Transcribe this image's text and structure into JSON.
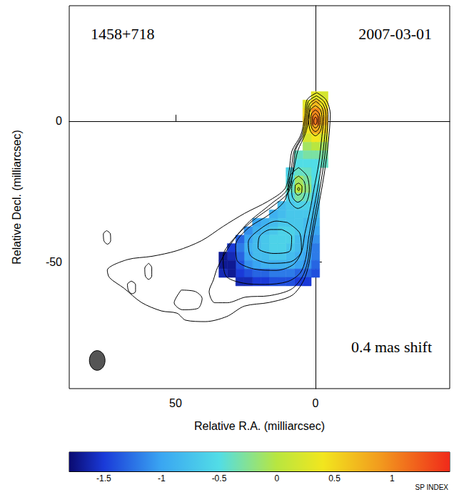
{
  "chart_data": {
    "type": "heatmap",
    "title": "1458+718",
    "subtitle": "2007-03-01",
    "annotations": [
      "0.4 mas shift"
    ],
    "x_label": "Relative R.A. (milliarcsec)",
    "y_label": "Relative Decl. (milliarcsec)",
    "xlim": [
      88,
      -48
    ],
    "xticks": [
      50,
      0
    ],
    "ylim": [
      -95,
      41
    ],
    "yticks": [
      -50,
      0
    ],
    "grid": false,
    "cells": {
      "x": [
        -3,
        0,
        3,
        6,
        9,
        12,
        15,
        18,
        21,
        24,
        27,
        30,
        33
      ],
      "y": [
        9,
        6,
        3,
        0,
        -3,
        -6,
        -9,
        -12,
        -15,
        -18,
        -21,
        -24,
        -27,
        -30,
        -33,
        -36,
        -39,
        -42,
        -45,
        -48,
        -51,
        -54,
        -57
      ],
      "values": [
        [
          0.2,
          0.3,
          null,
          null,
          null,
          null,
          null,
          null,
          null,
          null,
          null,
          null,
          null
        ],
        [
          0.4,
          0.7,
          0.3,
          null,
          null,
          null,
          null,
          null,
          null,
          null,
          null,
          null,
          null
        ],
        [
          0.6,
          1.0,
          0.5,
          null,
          null,
          null,
          null,
          null,
          null,
          null,
          null,
          null,
          null
        ],
        [
          0.7,
          1.1,
          0.6,
          null,
          null,
          null,
          null,
          null,
          null,
          null,
          null,
          null,
          null
        ],
        [
          0.5,
          0.8,
          0.4,
          null,
          null,
          null,
          null,
          null,
          null,
          null,
          null,
          null,
          null
        ],
        [
          0.2,
          0.4,
          0.2,
          null,
          null,
          null,
          null,
          null,
          null,
          null,
          null,
          null,
          null
        ],
        [
          -0.1,
          0.0,
          -0.1,
          null,
          null,
          null,
          null,
          null,
          null,
          null,
          null,
          null,
          null
        ],
        [
          -0.3,
          -0.3,
          -0.3,
          -0.4,
          null,
          null,
          null,
          null,
          null,
          null,
          null,
          null,
          null
        ],
        [
          -0.4,
          -0.5,
          -0.5,
          -0.5,
          null,
          null,
          null,
          null,
          null,
          null,
          null,
          null,
          null
        ],
        [
          null,
          -0.5,
          -0.4,
          -0.4,
          -0.6,
          null,
          null,
          null,
          null,
          null,
          null,
          null,
          null
        ],
        [
          null,
          -0.5,
          -0.3,
          -0.1,
          -0.5,
          null,
          null,
          null,
          null,
          null,
          null,
          null,
          null
        ],
        [
          null,
          -0.6,
          -0.2,
          0.0,
          -0.4,
          null,
          null,
          null,
          null,
          null,
          null,
          null,
          null
        ],
        [
          null,
          -0.7,
          -0.4,
          -0.3,
          -0.6,
          null,
          null,
          null,
          null,
          null,
          null,
          null,
          null
        ],
        [
          null,
          -0.8,
          -0.6,
          -0.6,
          -0.7,
          -0.8,
          null,
          null,
          null,
          null,
          null,
          null,
          null
        ],
        [
          null,
          -0.8,
          -0.7,
          -0.7,
          -0.7,
          -0.8,
          -0.9,
          null,
          null,
          null,
          null,
          null,
          null
        ],
        [
          null,
          -0.9,
          -0.8,
          -0.7,
          -0.7,
          -0.7,
          -0.8,
          -0.9,
          -1.0,
          null,
          null,
          null,
          null
        ],
        [
          null,
          -1.0,
          -0.8,
          -0.7,
          -0.6,
          -0.6,
          -0.7,
          -0.8,
          -0.9,
          -1.1,
          null,
          null,
          null
        ],
        [
          null,
          -1.1,
          -0.9,
          -0.8,
          -0.6,
          -0.6,
          -0.6,
          -0.7,
          -0.8,
          -1.0,
          -1.3,
          null,
          null
        ],
        [
          null,
          -1.2,
          -0.9,
          -0.8,
          -0.7,
          -0.6,
          -0.6,
          -0.7,
          -0.8,
          -0.9,
          -1.2,
          -1.5,
          null
        ],
        [
          null,
          -1.2,
          -1.0,
          -0.9,
          -0.8,
          -0.7,
          -0.7,
          -0.8,
          -0.8,
          -1.0,
          -1.3,
          -1.6,
          -1.7
        ],
        [
          null,
          -1.3,
          -1.1,
          -1.0,
          -0.9,
          -0.9,
          -0.9,
          -0.9,
          -1.0,
          -1.1,
          -1.4,
          -1.7,
          -1.7
        ],
        [
          null,
          -1.4,
          -1.3,
          -1.3,
          -1.2,
          -1.2,
          -1.2,
          -1.3,
          -1.3,
          -1.4,
          -1.5,
          -1.7,
          -1.6
        ],
        [
          null,
          null,
          -1.5,
          -1.5,
          -1.4,
          -1.4,
          -1.4,
          -1.5,
          -1.5,
          -1.6,
          -1.6,
          null,
          null
        ]
      ]
    },
    "colorbar": {
      "label": "SP INDEX",
      "range": [
        -1.8,
        1.5
      ],
      "ticks": [
        -1.5,
        -1,
        -0.5,
        0,
        0.5,
        1
      ]
    },
    "contours": [
      [
        [
          -0.5,
          10.1
        ],
        [
          -3.8,
          7.6
        ],
        [
          -5.3,
          2.5
        ],
        [
          -4.6,
          -7.6
        ],
        [
          -3.3,
          -17.7
        ],
        [
          -1.8,
          -26.5
        ],
        [
          -0.3,
          -34.1
        ],
        [
          1.3,
          -42.9
        ],
        [
          2.3,
          -50.5
        ],
        [
          4.3,
          -56.8
        ],
        [
          8.4,
          -61.9
        ],
        [
          16.5,
          -64.4
        ],
        [
          25.4,
          -65.7
        ],
        [
          31.7,
          -69.4
        ],
        [
          39.3,
          -71.2
        ],
        [
          46.4,
          -70.7
        ],
        [
          49.5,
          -68.2
        ],
        [
          55.1,
          -67.4
        ],
        [
          62.2,
          -64.4
        ],
        [
          68.5,
          -59.3
        ],
        [
          73.6,
          -55.6
        ],
        [
          74.4,
          -53.0
        ],
        [
          67.3,
          -49.2
        ],
        [
          58.4,
          -48.0
        ],
        [
          49.5,
          -46.0
        ],
        [
          40.6,
          -42.4
        ],
        [
          33.0,
          -37.4
        ],
        [
          25.4,
          -32.8
        ],
        [
          17.0,
          -28.5
        ],
        [
          10.9,
          -24.0
        ],
        [
          9.4,
          -17.7
        ],
        [
          8.4,
          -10.6
        ],
        [
          5.3,
          -5.1
        ],
        [
          3.8,
          1.3
        ],
        [
          3.0,
          7.6
        ],
        [
          -0.5,
          10.1
        ]
      ],
      [
        [
          -0.4,
          9.0
        ],
        [
          -3.2,
          6.8
        ],
        [
          -4.5,
          2.3
        ],
        [
          -3.9,
          -7.0
        ],
        [
          -2.7,
          -17.0
        ],
        [
          -1.2,
          -26.0
        ],
        [
          0.3,
          -34.0
        ],
        [
          1.8,
          -42.5
        ],
        [
          2.8,
          -50.0
        ],
        [
          4.8,
          -55.5
        ],
        [
          8.8,
          -59.8
        ],
        [
          16.5,
          -62.0
        ],
        [
          25.0,
          -62.5
        ],
        [
          31.5,
          -64.5
        ],
        [
          36.0,
          -64.5
        ],
        [
          38.0,
          -60.5
        ],
        [
          36.5,
          -56.5
        ],
        [
          35.0,
          -52.0
        ],
        [
          30.5,
          -44.0
        ],
        [
          24.5,
          -36.5
        ],
        [
          16.0,
          -29.5
        ],
        [
          10.2,
          -24.5
        ],
        [
          8.7,
          -17.5
        ],
        [
          7.6,
          -10.5
        ],
        [
          4.8,
          -5.0
        ],
        [
          3.3,
          1.3
        ],
        [
          2.6,
          6.9
        ],
        [
          -0.4,
          9.0
        ]
      ],
      [
        [
          -0.3,
          8.0
        ],
        [
          -2.7,
          6.0
        ],
        [
          -3.8,
          2.0
        ],
        [
          -3.2,
          -6.5
        ],
        [
          -2.0,
          -16.5
        ],
        [
          -0.5,
          -25.5
        ],
        [
          1.0,
          -33.5
        ],
        [
          2.5,
          -42.0
        ],
        [
          3.5,
          -49.0
        ],
        [
          5.5,
          -54.0
        ],
        [
          10.0,
          -57.0
        ],
        [
          18.0,
          -58.0
        ],
        [
          26.0,
          -57.5
        ],
        [
          32.0,
          -55.0
        ],
        [
          33.0,
          -48.0
        ],
        [
          28.5,
          -41.0
        ],
        [
          22.0,
          -35.0
        ],
        [
          15.0,
          -30.0
        ],
        [
          9.5,
          -25.0
        ],
        [
          8.0,
          -17.0
        ],
        [
          7.0,
          -10.0
        ],
        [
          4.2,
          -4.8
        ],
        [
          2.8,
          1.2
        ],
        [
          2.2,
          6.0
        ],
        [
          -0.3,
          8.0
        ]
      ],
      [
        [
          -0.2,
          7.0
        ],
        [
          -2.3,
          5.0
        ],
        [
          -3.0,
          1.5
        ],
        [
          -2.3,
          -5.5
        ],
        [
          -1.2,
          -15.0
        ],
        [
          0.5,
          -24.0
        ],
        [
          2.0,
          -32.0
        ],
        [
          3.8,
          -40.0
        ],
        [
          5.0,
          -46.5
        ],
        [
          8.0,
          -51.0
        ],
        [
          14.0,
          -53.0
        ],
        [
          22.0,
          -52.5
        ],
        [
          28.0,
          -49.5
        ],
        [
          28.5,
          -44.0
        ],
        [
          24.0,
          -38.0
        ],
        [
          17.0,
          -33.5
        ],
        [
          11.5,
          -29.0
        ],
        [
          9.5,
          -24.0
        ],
        [
          7.8,
          -17.5
        ],
        [
          6.3,
          -10.5
        ],
        [
          3.6,
          -4.5
        ],
        [
          2.3,
          1.0
        ],
        [
          1.8,
          5.2
        ],
        [
          -0.2,
          7.0
        ]
      ],
      [
        [
          0,
          5.5
        ],
        [
          -1.8,
          4.0
        ],
        [
          -2.4,
          0.5
        ],
        [
          -1.8,
          -3.5
        ],
        [
          0,
          -5.2
        ],
        [
          1.8,
          -3.5
        ],
        [
          2.4,
          0.5
        ],
        [
          1.8,
          4.0
        ],
        [
          0,
          5.5
        ]
      ],
      [
        [
          6,
          -16.5
        ],
        [
          3.0,
          -19.5
        ],
        [
          2.2,
          -24.5
        ],
        [
          3.3,
          -29.0
        ],
        [
          6.3,
          -31.0
        ],
        [
          9.2,
          -28.5
        ],
        [
          9.8,
          -23.5
        ],
        [
          8.8,
          -19.0
        ],
        [
          6,
          -16.5
        ]
      ],
      [
        [
          10,
          -36
        ],
        [
          5.5,
          -40
        ],
        [
          5,
          -46
        ],
        [
          9,
          -50
        ],
        [
          16,
          -50.5
        ],
        [
          23,
          -48
        ],
        [
          24,
          -43
        ],
        [
          20,
          -38.5
        ],
        [
          14,
          -35.5
        ],
        [
          10,
          -36
        ]
      ],
      [
        [
          0,
          4.0
        ],
        [
          -1.3,
          2.8
        ],
        [
          -1.7,
          0.3
        ],
        [
          -1.3,
          -2.5
        ],
        [
          0,
          -3.7
        ],
        [
          1.3,
          -2.5
        ],
        [
          1.7,
          0.3
        ],
        [
          1.3,
          2.8
        ],
        [
          0,
          4.0
        ]
      ],
      [
        [
          6,
          -19.5
        ],
        [
          4.0,
          -21.5
        ],
        [
          3.6,
          -24.5
        ],
        [
          4.5,
          -27.5
        ],
        [
          6.3,
          -28.8
        ],
        [
          8.2,
          -27.0
        ],
        [
          8.5,
          -24.0
        ],
        [
          7.8,
          -21.0
        ],
        [
          6,
          -19.5
        ]
      ],
      [
        [
          12,
          -38.5
        ],
        [
          8.5,
          -41
        ],
        [
          9,
          -46
        ],
        [
          15,
          -47
        ],
        [
          20.5,
          -45
        ],
        [
          20,
          -41
        ],
        [
          16,
          -38.5
        ],
        [
          12,
          -38.5
        ]
      ],
      [
        [
          0,
          2.7
        ],
        [
          -0.9,
          1.8
        ],
        [
          -1.1,
          0.2
        ],
        [
          -0.9,
          -1.6
        ],
        [
          0,
          -2.4
        ],
        [
          0.9,
          -1.6
        ],
        [
          1.1,
          0.2
        ],
        [
          0.9,
          1.8
        ],
        [
          0,
          2.7
        ]
      ],
      [
        [
          6,
          -22.0
        ],
        [
          4.8,
          -23.2
        ],
        [
          5.0,
          -25.5
        ],
        [
          6.3,
          -26.3
        ],
        [
          7.3,
          -25.0
        ],
        [
          7.2,
          -22.8
        ],
        [
          6,
          -22.0
        ]
      ],
      [
        [
          0,
          1.5
        ],
        [
          -0.5,
          0.9
        ],
        [
          -0.6,
          0
        ],
        [
          -0.4,
          -0.9
        ],
        [
          0.1,
          -1.2
        ],
        [
          0.5,
          -0.8
        ],
        [
          0.6,
          0.1
        ],
        [
          0.4,
          0.9
        ],
        [
          0,
          1.5
        ]
      ],
      [
        [
          6,
          -23.5
        ],
        [
          5.6,
          -24.1
        ],
        [
          6.0,
          -24.7
        ],
        [
          6.4,
          -24.1
        ],
        [
          6,
          -23.5
        ]
      ],
      [
        [
          74.6,
          -38.9
        ],
        [
          73.3,
          -40.0
        ],
        [
          73.2,
          -42.5
        ],
        [
          74.3,
          -43.7
        ],
        [
          75.6,
          -42.5
        ],
        [
          75.8,
          -40.0
        ],
        [
          74.6,
          -38.9
        ]
      ],
      [
        [
          65.8,
          -56.8
        ],
        [
          64.3,
          -58.0
        ],
        [
          64.3,
          -60.5
        ],
        [
          65.5,
          -61.3
        ],
        [
          66.8,
          -60.3
        ],
        [
          67.2,
          -57.9
        ],
        [
          65.8,
          -56.8
        ]
      ],
      [
        [
          59.6,
          -50.5
        ],
        [
          58.5,
          -52.0
        ],
        [
          58.5,
          -55.0
        ],
        [
          59.6,
          -56.2
        ],
        [
          60.8,
          -55.0
        ],
        [
          61.0,
          -52.2
        ],
        [
          59.6,
          -50.5
        ]
      ],
      [
        [
          48,
          -60
        ],
        [
          43,
          -60.5
        ],
        [
          40.5,
          -63
        ],
        [
          42,
          -66.5
        ],
        [
          47.5,
          -67
        ],
        [
          50.5,
          -64.5
        ],
        [
          48,
          -60
        ]
      ]
    ],
    "beam": {
      "x": 78,
      "y": -85,
      "width": 5.6,
      "height": 7
    }
  }
}
